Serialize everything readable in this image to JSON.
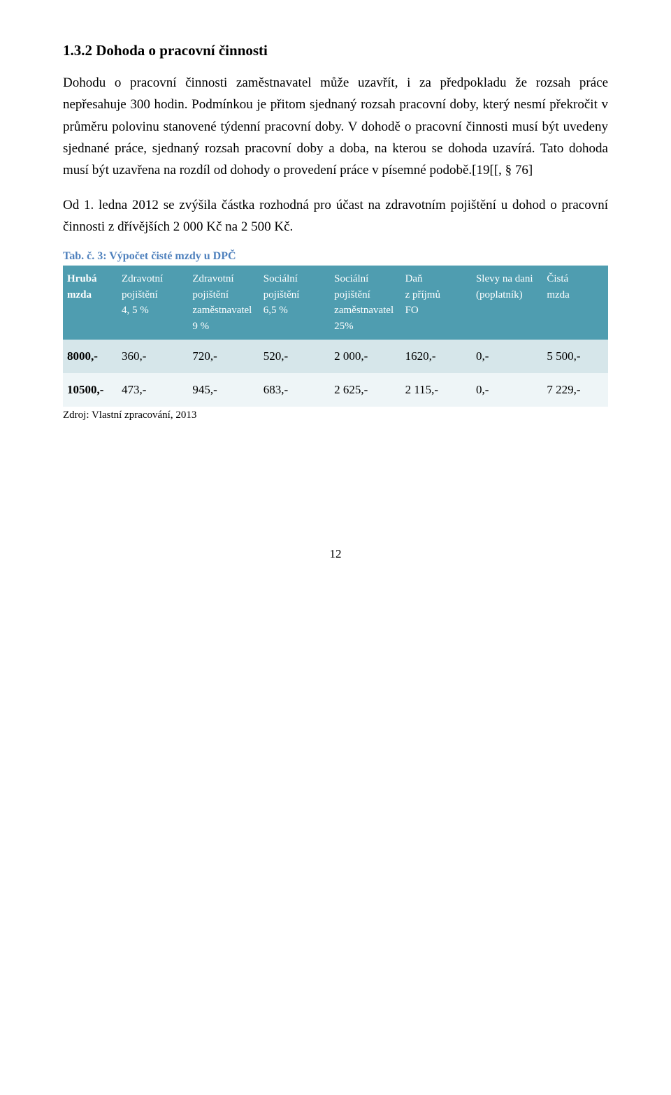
{
  "section": {
    "heading": "1.3.2   Dohoda o pracovní činnosti",
    "p1": "Dohodu o pracovní činnosti zaměstnavatel může uzavřít, i za předpokladu že rozsah práce nepřesahuje 300 hodin. Podmínkou je přitom sjednaný rozsah pracovní doby, který nesmí překročit v průměru polovinu stanovené týdenní pracovní doby. V dohodě o pracovní činnosti musí být uvedeny sjednané práce, sjednaný rozsah pracovní doby a doba, na kterou se dohoda uzavírá. Tato dohoda musí být uzavřena na rozdíl od dohody o provedení práce v písemné podobě.[19[[, § 76]",
    "p2": "Od 1. ledna 2012 se zvýšila částka rozhodná pro účast na zdravotním pojištění u dohod o pracovní činnosti z dřívějších 2 000 Kč na 2 500 Kč."
  },
  "table": {
    "caption": "Tab. č. 3: Výpočet čisté mzdy u DPČ",
    "caption_color": "#4f81bd",
    "header_bg": "#4f9db0",
    "header_fg": "#ffffff",
    "row_a_bg": "#d6e6ea",
    "row_b_bg": "#eef5f7",
    "columns": [
      [
        "Hrubá",
        "mzda",
        "",
        ""
      ],
      [
        "Zdravotní",
        "pojištění",
        "4, 5 %",
        ""
      ],
      [
        "Zdravotní",
        "pojištění",
        "zaměstnavatel",
        "9 %"
      ],
      [
        "Sociální",
        "pojištění",
        "6,5 %",
        ""
      ],
      [
        "Sociální",
        "pojištění",
        "zaměstnavatel",
        "25%"
      ],
      [
        "Daň",
        "z příjmů",
        "FO",
        ""
      ],
      [
        "Slevy na dani",
        "(poplatník)",
        "",
        ""
      ],
      [
        "Čistá",
        "mzda",
        "",
        ""
      ]
    ],
    "rows": [
      [
        "8000,-",
        "360,-",
        "720,-",
        "520,-",
        "2 000,-",
        "1620,-",
        "0,-",
        "5 500,-"
      ],
      [
        "10500,-",
        "473,-",
        "945,-",
        "683,-",
        "2 625,-",
        "2 115,-",
        "0,-",
        "7 229,-"
      ]
    ]
  },
  "source": "Zdroj: Vlastní zpracování, 2013",
  "page_number": "12"
}
